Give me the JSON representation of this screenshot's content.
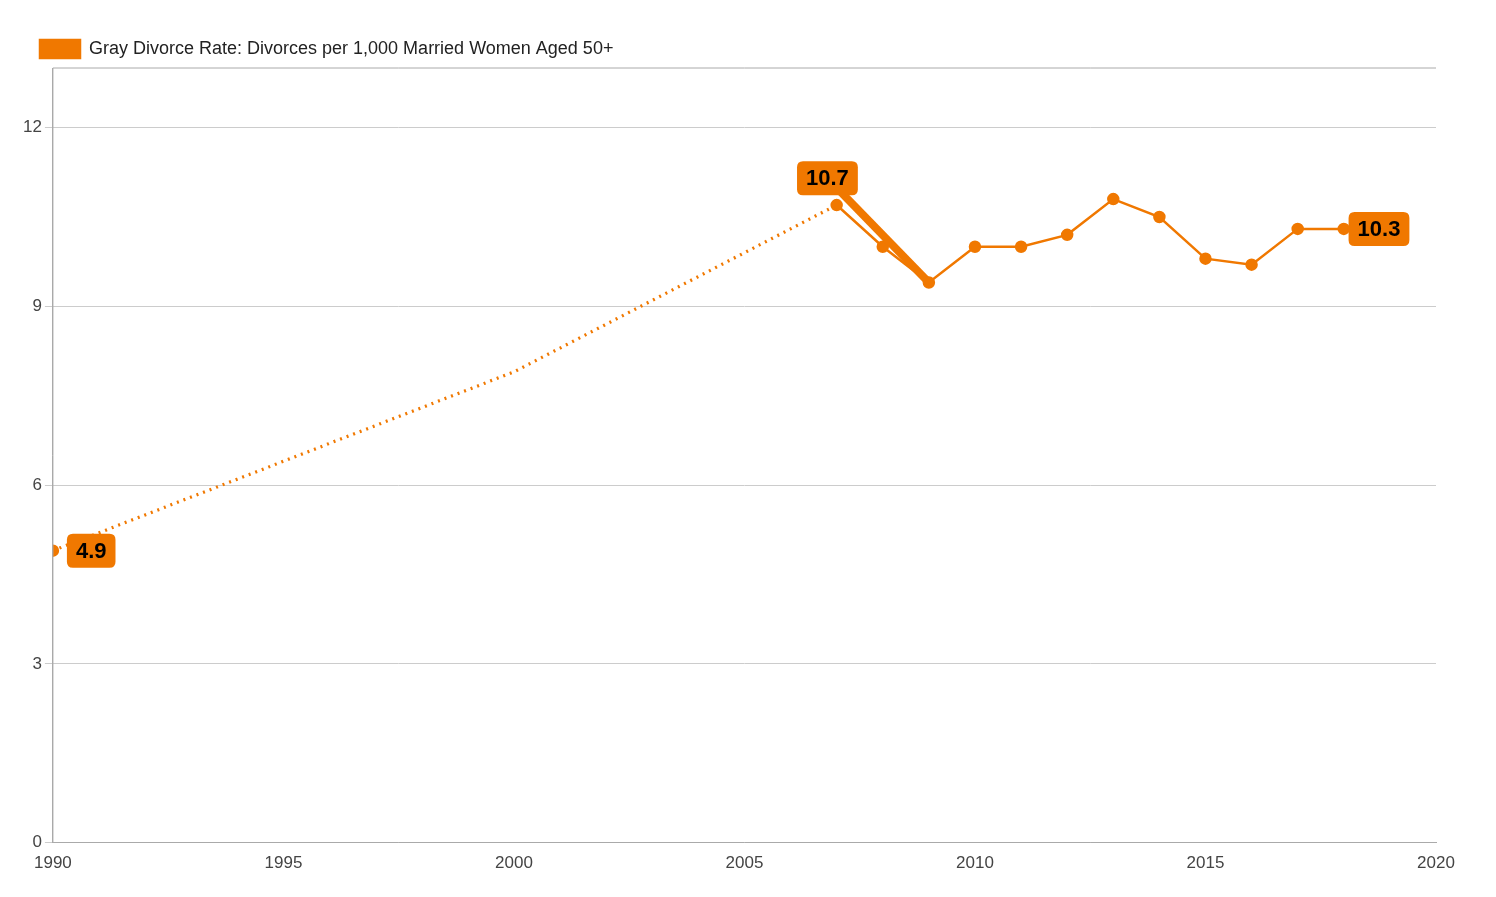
{
  "chart_data": {
    "type": "line",
    "series": [
      {
        "x": [
          1990,
          1991,
          1992,
          1993,
          1994,
          1995,
          1996,
          1997,
          1998,
          1999,
          2000,
          2001,
          2002,
          2003,
          2004,
          2005,
          2006,
          2007
        ],
        "values": [
          4.9,
          5.2,
          5.5,
          5.8,
          6.1,
          6.4,
          6.7,
          7.0,
          7.3,
          7.6,
          7.9,
          8.3,
          8.7,
          9.1,
          9.5,
          9.9,
          10.3,
          10.7
        ],
        "color": "#F07800",
        "line_style": "dotted",
        "marker": "none"
      },
      {
        "name": "Gray Divorce Rate: Divorces per 1,000 Married Women Aged 50+",
        "x": [
          2007,
          2008,
          2009,
          2010,
          2011,
          2012,
          2013,
          2014,
          2015,
          2016,
          2017,
          2018
        ],
        "values": [
          10.7,
          10.0,
          9.4,
          10.0,
          10.0,
          10.2,
          10.8,
          10.5,
          9.8,
          9.7,
          10.3,
          10.3
        ],
        "color": "#F07800",
        "line_style": "solid",
        "marker": "circle"
      },
      {
        "x": [
          1990
        ],
        "values": [
          4.9
        ],
        "color": "#F07800",
        "line_style": "none",
        "marker": "circle"
      }
    ],
    "annotations": [
      {
        "text": "4.9",
        "x": 1990,
        "y": 4.9,
        "color": "#F07800"
      },
      {
        "text": "10.7",
        "x": 2006.8,
        "y": 11.15,
        "arrow_x": 2009.0,
        "arrow_y": 9.4,
        "color": "#F07800"
      },
      {
        "text": "10.3",
        "x": 2017.8,
        "y": 10.3,
        "color": "#F07800"
      }
    ],
    "xlim": [
      1990,
      2020
    ],
    "ylim": [
      0,
      13
    ],
    "xticks": [
      1990,
      1995,
      2000,
      2005,
      2010,
      2015,
      2020
    ],
    "yticks": [
      0,
      3,
      6,
      9,
      12
    ],
    "grid": "y",
    "legend": "top-left"
  }
}
